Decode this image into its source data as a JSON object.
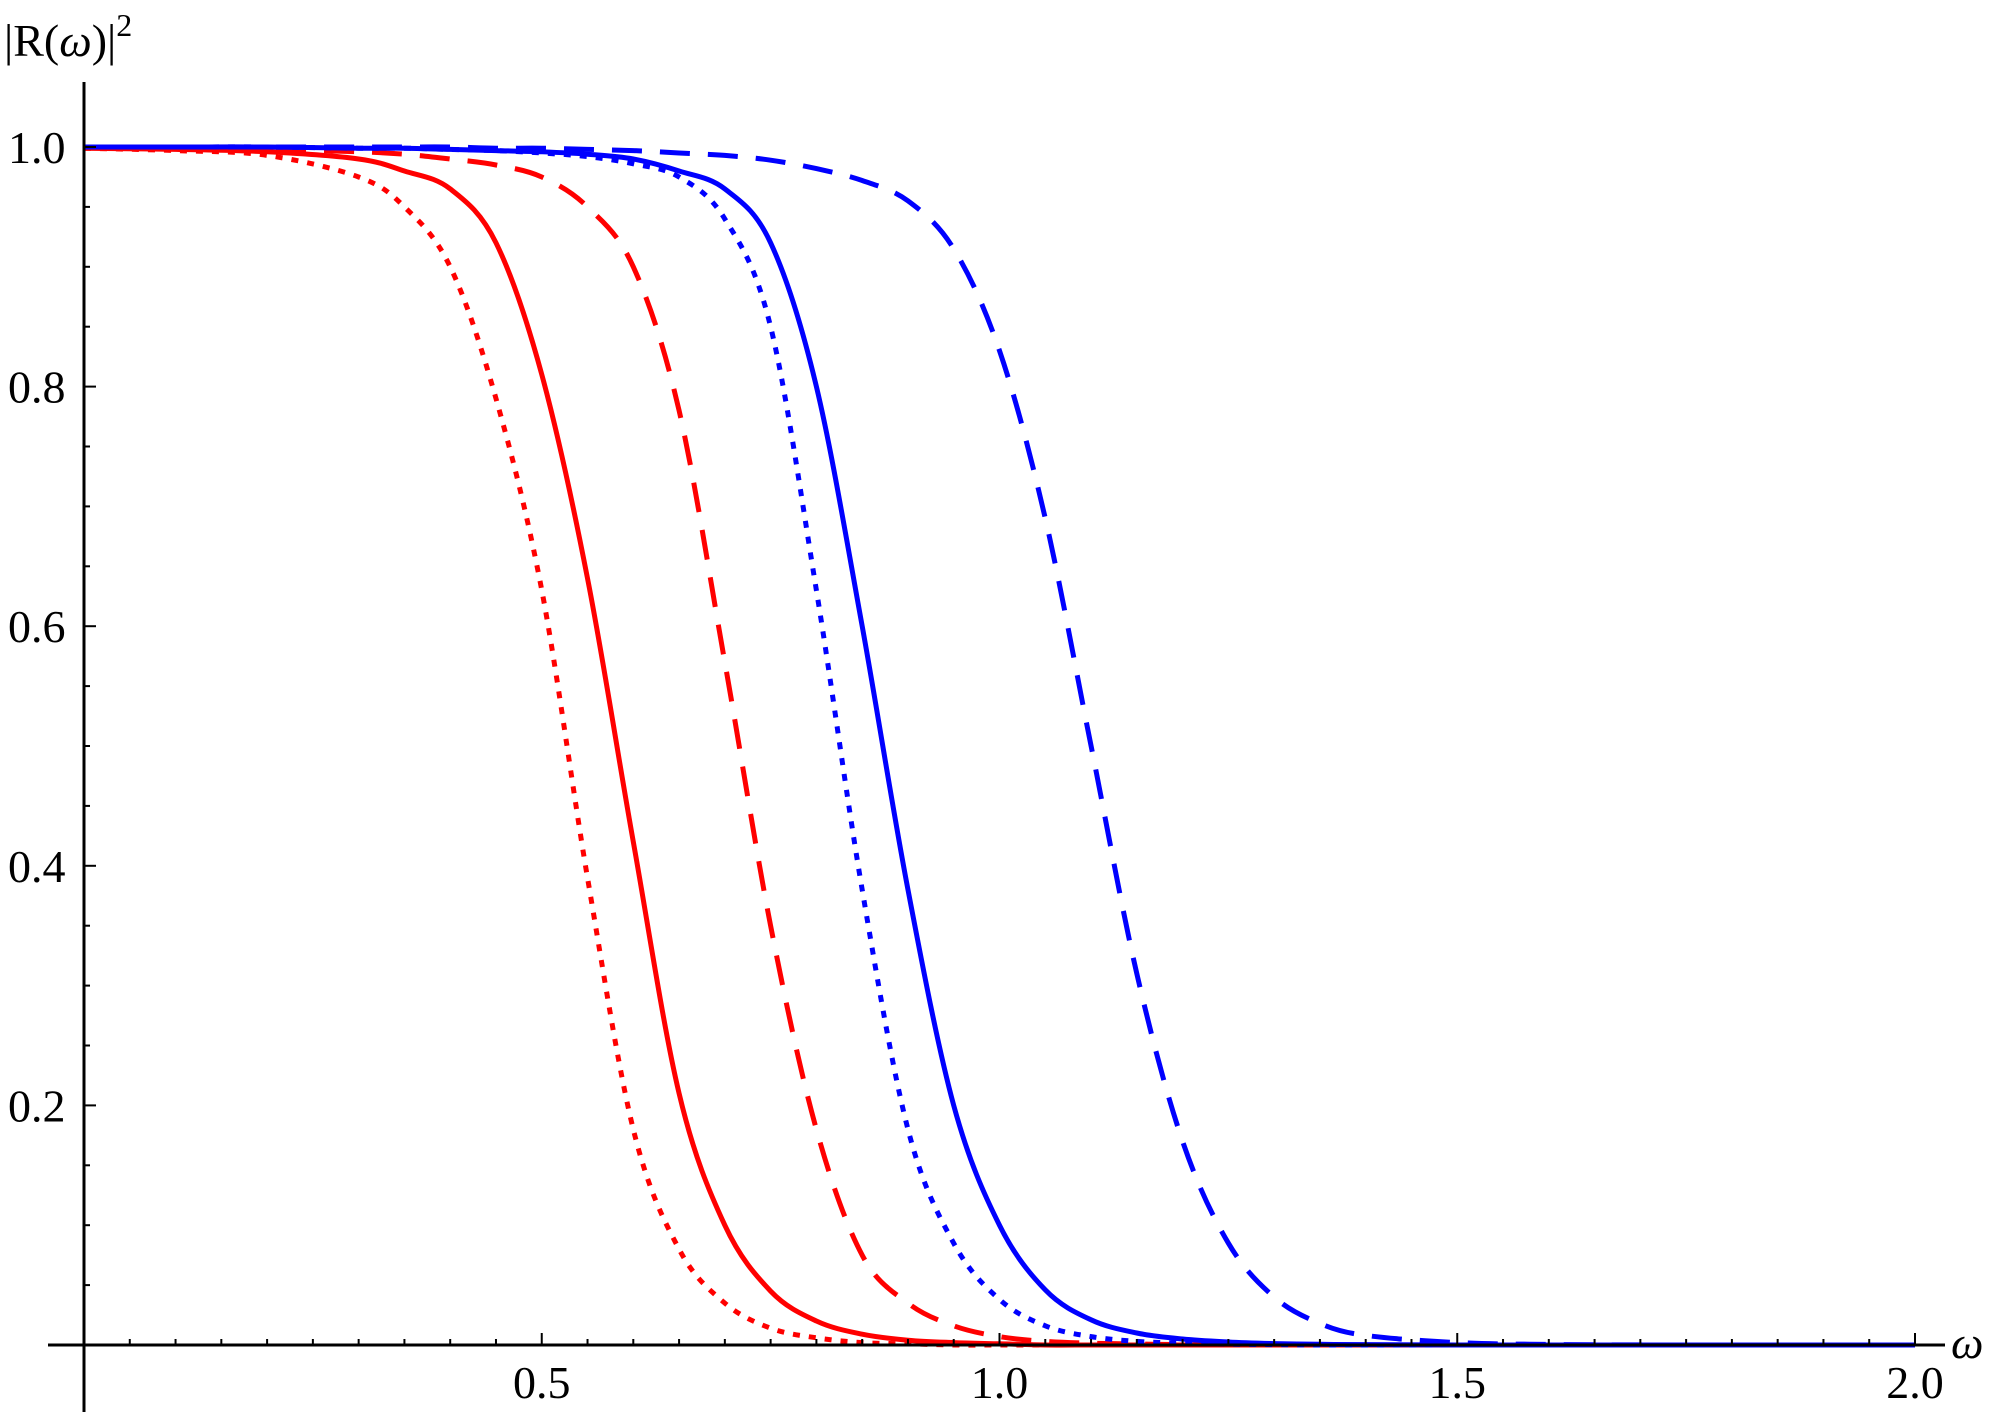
{
  "chart_data": {
    "type": "line",
    "xlabel": "ω",
    "ylabel": {
      "prefix": "|R(",
      "symbol": "ω",
      "suffix": ")|",
      "superscript": "2"
    },
    "xlim": [
      0,
      2.0
    ],
    "ylim": [
      0,
      1.0
    ],
    "x_ticks": [
      "0.5",
      "1.0",
      "1.5",
      "2.0"
    ],
    "y_ticks": [
      "0.2",
      "0.4",
      "0.6",
      "0.8",
      "1.0"
    ],
    "grid": false,
    "legend": "none",
    "x": [
      0.0,
      0.1,
      0.2,
      0.3,
      0.35,
      0.4,
      0.45,
      0.5,
      0.55,
      0.6,
      0.65,
      0.7,
      0.75,
      0.8,
      0.85,
      0.9,
      0.95,
      1.0,
      1.05,
      1.1,
      1.15,
      1.2,
      1.25,
      1.3,
      1.35,
      1.4,
      1.5,
      1.6,
      1.7,
      1.8,
      2.0
    ],
    "series": [
      {
        "color": "#ff0000",
        "style": "dotted",
        "values": [
          0.999,
          0.997,
          0.993,
          0.975,
          0.95,
          0.9,
          0.79,
          0.63,
          0.39,
          0.18,
          0.08,
          0.035,
          0.014,
          0.006,
          0.002,
          0.001,
          0.0,
          0.0,
          0.0,
          0.0,
          0.0,
          0.0,
          0.0,
          0.0,
          0.0,
          0.0,
          0.0,
          0.0,
          0.0,
          0.0,
          0.0
        ]
      },
      {
        "color": "#ff0000",
        "style": "solid",
        "values": [
          0.999,
          0.998,
          0.996,
          0.99,
          0.98,
          0.965,
          0.92,
          0.81,
          0.64,
          0.42,
          0.21,
          0.1,
          0.045,
          0.02,
          0.009,
          0.004,
          0.002,
          0.001,
          0.0,
          0.0,
          0.0,
          0.0,
          0.0,
          0.0,
          0.0,
          0.0,
          0.0,
          0.0,
          0.0,
          0.0,
          0.0
        ]
      },
      {
        "color": "#ff0000",
        "style": "dashed",
        "values": [
          1.0,
          0.999,
          0.998,
          0.996,
          0.994,
          0.99,
          0.985,
          0.975,
          0.95,
          0.9,
          0.78,
          0.57,
          0.35,
          0.18,
          0.075,
          0.035,
          0.016,
          0.007,
          0.003,
          0.0015,
          0.0008,
          0.0004,
          0.0,
          0.0,
          0.0,
          0.0,
          0.0,
          0.0,
          0.0,
          0.0,
          0.0
        ]
      },
      {
        "color": "#0000ff",
        "style": "dotted",
        "values": [
          1.0,
          1.0,
          1.0,
          0.999,
          0.999,
          0.998,
          0.997,
          0.995,
          0.992,
          0.986,
          0.975,
          0.94,
          0.85,
          0.63,
          0.38,
          0.18,
          0.085,
          0.038,
          0.016,
          0.007,
          0.003,
          0.0015,
          0.0007,
          0.0003,
          0.0,
          0.0,
          0.0,
          0.0,
          0.0,
          0.0,
          0.0
        ]
      },
      {
        "color": "#0000ff",
        "style": "solid",
        "values": [
          1.0,
          1.0,
          1.0,
          0.999,
          0.999,
          0.998,
          0.997,
          0.996,
          0.994,
          0.99,
          0.98,
          0.965,
          0.92,
          0.8,
          0.6,
          0.38,
          0.2,
          0.1,
          0.046,
          0.021,
          0.01,
          0.005,
          0.0025,
          0.0012,
          0.0006,
          0.0003,
          0.0,
          0.0,
          0.0,
          0.0,
          0.0
        ]
      },
      {
        "color": "#0000ff",
        "style": "dashed",
        "values": [
          1.0,
          1.0,
          1.0,
          1.0,
          1.0,
          1.0,
          0.999,
          0.999,
          0.998,
          0.997,
          0.995,
          0.993,
          0.989,
          0.982,
          0.972,
          0.955,
          0.915,
          0.83,
          0.69,
          0.5,
          0.31,
          0.17,
          0.085,
          0.04,
          0.018,
          0.008,
          0.002,
          0.0005,
          0.0001,
          0.0,
          0.0
        ]
      }
    ]
  }
}
